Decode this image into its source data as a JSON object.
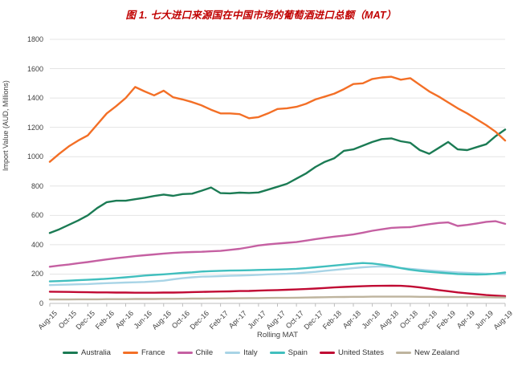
{
  "chart_data": {
    "type": "line",
    "title": "图 1. 七大进口来源国在中国市场的葡萄酒进口总额（MAT）",
    "xlabel": "Rolling MAT",
    "ylabel": "Import Value (AUD, Millions)",
    "ylim": [
      0,
      1800
    ],
    "y_tick_step": 200,
    "grid": "horizontal",
    "legend_position": "bottom",
    "x_unit": "monthly points, labels every 2 months",
    "tick_labels": [
      "Aug-15",
      "Oct-15",
      "Dec-15",
      "Feb-16",
      "Apr-16",
      "Jun-16",
      "Aug-16",
      "Oct-16",
      "Dec-16",
      "Feb-17",
      "Apr-17",
      "Jun-17",
      "Aug-17",
      "Oct-17",
      "Dec-17",
      "Feb-18",
      "Apr-18",
      "Jun-18",
      "Aug-18",
      "Oct-18",
      "Dec-18",
      "Feb-19",
      "Apr-19",
      "Jun-19",
      "Aug-19"
    ],
    "series": [
      {
        "name": "Australia",
        "color": "#1b7b54",
        "values": [
          480,
          505,
          535,
          565,
          600,
          650,
          690,
          700,
          700,
          710,
          720,
          732,
          742,
          733,
          745,
          748,
          768,
          790,
          752,
          750,
          755,
          753,
          756,
          775,
          795,
          815,
          850,
          885,
          930,
          965,
          990,
          1040,
          1050,
          1075,
          1100,
          1120,
          1125,
          1105,
          1095,
          1045,
          1020,
          1060,
          1100,
          1050,
          1045,
          1065,
          1085,
          1140,
          1185
        ]
      },
      {
        "name": "France",
        "color": "#f36f26",
        "values": [
          965,
          1020,
          1070,
          1110,
          1145,
          1220,
          1295,
          1345,
          1400,
          1475,
          1445,
          1418,
          1450,
          1405,
          1390,
          1372,
          1350,
          1320,
          1295,
          1295,
          1290,
          1262,
          1270,
          1295,
          1325,
          1330,
          1340,
          1360,
          1390,
          1410,
          1430,
          1460,
          1495,
          1500,
          1530,
          1540,
          1545,
          1525,
          1535,
          1490,
          1445,
          1410,
          1370,
          1330,
          1295,
          1255,
          1215,
          1170,
          1110
        ]
      },
      {
        "name": "Chile",
        "color": "#c560a2",
        "values": [
          250,
          258,
          265,
          274,
          282,
          291,
          300,
          308,
          315,
          322,
          328,
          334,
          340,
          344,
          348,
          350,
          352,
          355,
          358,
          365,
          372,
          383,
          395,
          402,
          408,
          413,
          418,
          428,
          438,
          447,
          455,
          462,
          470,
          482,
          495,
          505,
          515,
          518,
          520,
          530,
          540,
          548,
          552,
          528,
          535,
          545,
          556,
          560,
          542
        ]
      },
      {
        "name": "Italy",
        "color": "#a8d4e6",
        "values": [
          125,
          127,
          128,
          130,
          132,
          135,
          138,
          140,
          142,
          144,
          146,
          150,
          155,
          164,
          172,
          178,
          182,
          184,
          186,
          188,
          190,
          192,
          195,
          198,
          200,
          202,
          205,
          210,
          215,
          222,
          228,
          234,
          240,
          246,
          250,
          252,
          248,
          242,
          235,
          230,
          225,
          220,
          215,
          211,
          208,
          205,
          203,
          201,
          200
        ]
      },
      {
        "name": "Spain",
        "color": "#41bfbe",
        "values": [
          150,
          152,
          155,
          158,
          161,
          164,
          168,
          173,
          178,
          184,
          190,
          194,
          198,
          203,
          208,
          212,
          217,
          220,
          222,
          224,
          225,
          226,
          228,
          229,
          231,
          233,
          236,
          240,
          246,
          252,
          258,
          264,
          270,
          275,
          272,
          264,
          254,
          240,
          229,
          221,
          215,
          210,
          205,
          200,
          198,
          197,
          198,
          203,
          211
        ]
      },
      {
        "name": "United States",
        "color": "#c00a33",
        "values": [
          80,
          79,
          78,
          77,
          76,
          75,
          75,
          74,
          74,
          73,
          73,
          73,
          74,
          74,
          75,
          77,
          78,
          80,
          81,
          82,
          84,
          85,
          87,
          89,
          91,
          93,
          95,
          98,
          101,
          105,
          109,
          112,
          115,
          117,
          119,
          120,
          121,
          120,
          116,
          109,
          100,
          91,
          83,
          75,
          69,
          63,
          57,
          53,
          50
        ]
      },
      {
        "name": "New Zealand",
        "color": "#beb49e",
        "values": [
          27,
          27,
          27,
          28,
          28,
          28,
          29,
          29,
          29,
          30,
          30,
          30,
          31,
          31,
          32,
          33,
          33,
          34,
          34,
          35,
          35,
          36,
          36,
          37,
          38,
          38,
          39,
          40,
          41,
          42,
          43,
          44,
          45,
          45,
          46,
          46,
          46,
          46,
          46,
          45,
          45,
          44,
          44,
          43,
          43,
          42,
          42,
          41,
          40
        ]
      }
    ]
  }
}
